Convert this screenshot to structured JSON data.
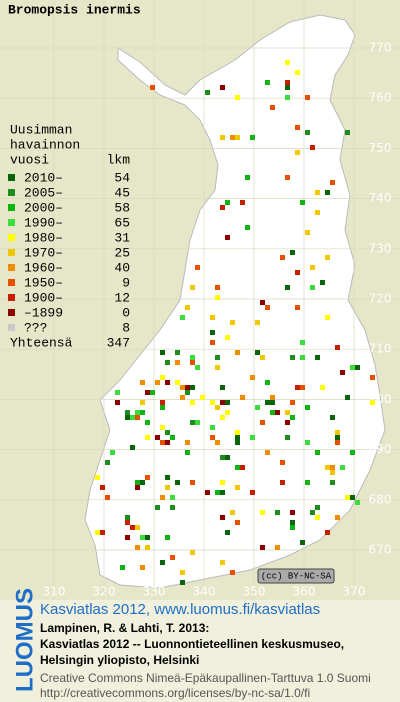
{
  "title": "Bromopsis inermis",
  "legend": {
    "heading": [
      "Uusimman",
      "havainnon"
    ],
    "col_year": "vuosi",
    "col_count": "lkm",
    "rows": [
      {
        "label": "2010–",
        "count": 54,
        "color": "#0a640a"
      },
      {
        "label": "2005–",
        "count": 45,
        "color": "#1e8c1e"
      },
      {
        "label": "2000–",
        "count": 58,
        "color": "#10b410"
      },
      {
        "label": "1990–",
        "count": 65,
        "color": "#3cdc3c"
      },
      {
        "label": "1980–",
        "count": 31,
        "color": "#ffff00"
      },
      {
        "label": "1970–",
        "count": 25,
        "color": "#f0c800"
      },
      {
        "label": "1960–",
        "count": 40,
        "color": "#f08c00"
      },
      {
        "label": "1950–",
        "count": 9,
        "color": "#e65000"
      },
      {
        "label": "1900–",
        "count": 12,
        "color": "#c81e00"
      },
      {
        "label": "–1899",
        "count": 0,
        "color": "#8c0000"
      },
      {
        "label": "???",
        "count": 8,
        "color": "#c8c8c8"
      }
    ],
    "total_label": "Yhteensä",
    "total": 347
  },
  "grid": {
    "northing": [
      770,
      760,
      750,
      740,
      730,
      720,
      710,
      700,
      690,
      680,
      670
    ],
    "easting": [
      310,
      320,
      330,
      340,
      350,
      360,
      370
    ]
  },
  "license_badge": "(cc) BY-NC-SA",
  "footer": {
    "link": "Kasviatlas 2012, www.luomus.fi/kasviatlas",
    "citation": [
      "Lampinen, R. & Lahti, T. 2013:",
      "Kasviatlas 2012 -- Luonnontieteellinen keskusmuseo,",
      "Helsingin yliopisto, Helsinki"
    ],
    "license": [
      "Creative Commons Nimeä-Epäkaupallinen-Tarttuva 1.0 Suomi",
      "http://creativecommons.org/licenses/by-nc-sa/1.0/fi"
    ]
  },
  "logo": "LUOMUS"
}
